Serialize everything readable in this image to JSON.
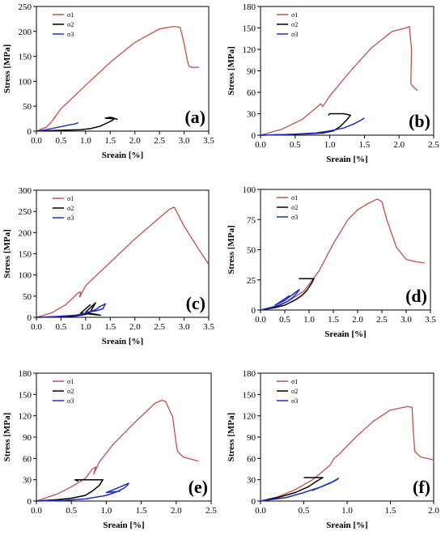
{
  "colors": {
    "s1": "#c0504d",
    "s2": "#000000",
    "s3": "#1f2ccc"
  },
  "chart_data": [
    {
      "type": "line",
      "panel_label": "(a)",
      "xlabel": "Sreain [%]",
      "ylabel": "Stress [MPa]",
      "xlim": [
        0,
        3.5
      ],
      "ylim": [
        0,
        250
      ],
      "xticks": [
        "0.0",
        "0.5",
        "1.0",
        "1.5",
        "2.0",
        "2.5",
        "3.0",
        "3.5"
      ],
      "yticks": [
        "0",
        "50",
        "100",
        "150",
        "200",
        "250"
      ],
      "legend": {
        "position": "top-left",
        "entries": [
          "σ1",
          "σ2",
          "σ3"
        ]
      },
      "series": [
        {
          "name": "σ1",
          "color": "#c0504d",
          "x": [
            0,
            0.2,
            0.3,
            0.38,
            0.35,
            0.5,
            1.0,
            1.5,
            2.0,
            2.5,
            2.8,
            2.92,
            3.0,
            3.07,
            3.1,
            3.15,
            3.3
          ],
          "y": [
            0,
            8,
            18,
            28,
            25,
            45,
            92,
            138,
            178,
            205,
            210,
            208,
            175,
            140,
            130,
            128,
            128
          ]
        },
        {
          "name": "σ2",
          "color": "#000000",
          "x": [
            0,
            0.3,
            0.6,
            0.9,
            1.1,
            1.3,
            1.45,
            1.55,
            1.58,
            1.5,
            1.4,
            1.55,
            1.65
          ],
          "y": [
            0,
            1,
            2,
            3,
            5,
            10,
            17,
            22,
            26,
            28,
            26,
            25,
            24
          ]
        },
        {
          "name": "σ3",
          "color": "#1f2ccc",
          "x": [
            0,
            0.2,
            0.4,
            0.6,
            0.8,
            0.85
          ],
          "y": [
            0,
            3,
            7,
            11,
            15,
            17
          ]
        }
      ]
    },
    {
      "type": "line",
      "panel_label": "(b)",
      "xlabel": "Sreain [%]",
      "ylabel": "Stress [MPa]",
      "xlim": [
        0,
        2.5
      ],
      "ylim": [
        0,
        180
      ],
      "xticks": [
        "0.0",
        "0.5",
        "1.0",
        "1.5",
        "2.0",
        "2.5"
      ],
      "yticks": [
        "0",
        "30",
        "60",
        "90",
        "120",
        "150",
        "180"
      ],
      "legend": {
        "position": "top-left",
        "entries": [
          "σ1",
          "σ2",
          "σ3"
        ]
      },
      "series": [
        {
          "name": "σ1",
          "color": "#c0504d",
          "x": [
            0,
            0.3,
            0.6,
            0.8,
            0.87,
            0.9,
            1.0,
            1.3,
            1.6,
            1.9,
            2.1,
            2.15,
            2.18,
            2.17,
            2.2,
            2.27
          ],
          "y": [
            0,
            8,
            22,
            38,
            44,
            40,
            55,
            90,
            122,
            145,
            150,
            152,
            120,
            72,
            68,
            62
          ]
        },
        {
          "name": "σ2",
          "color": "#000000",
          "x": [
            0,
            0.4,
            0.7,
            0.9,
            1.05,
            1.15,
            1.25,
            1.3,
            1.2,
            1.0,
            0.98
          ],
          "y": [
            0,
            1,
            2,
            3,
            6,
            12,
            22,
            28,
            30,
            30,
            28
          ]
        },
        {
          "name": "σ3",
          "color": "#1f2ccc",
          "x": [
            0,
            0.4,
            0.8,
            1.0,
            1.2,
            1.35,
            1.45,
            1.5
          ],
          "y": [
            0,
            1,
            3,
            6,
            10,
            16,
            21,
            24
          ]
        }
      ]
    },
    {
      "type": "line",
      "panel_label": "(c)",
      "xlabel": "Sreain [%]",
      "ylabel": "Stress [MPa]",
      "xlim": [
        0,
        3.5
      ],
      "ylim": [
        0,
        300
      ],
      "xticks": [
        "0.0",
        "0.5",
        "1.0",
        "1.5",
        "2.0",
        "2.5",
        "3.0",
        "3.5"
      ],
      "yticks": [
        "0",
        "50",
        "100",
        "150",
        "200",
        "250",
        "300"
      ],
      "legend": {
        "position": "top-left",
        "entries": [
          "σ1",
          "σ2",
          "σ3"
        ]
      },
      "series": [
        {
          "name": "σ1",
          "color": "#c0504d",
          "x": [
            0,
            0.3,
            0.6,
            0.85,
            0.9,
            0.88,
            1.0,
            1.5,
            2.0,
            2.5,
            2.7,
            2.8,
            3.0,
            3.3,
            3.5
          ],
          "y": [
            0,
            10,
            30,
            58,
            60,
            48,
            75,
            130,
            185,
            235,
            255,
            260,
            215,
            160,
            125
          ]
        },
        {
          "name": "σ2",
          "color": "#000000",
          "x": [
            0,
            0.5,
            0.8,
            1.0,
            1.1,
            1.2,
            1.0,
            1.15,
            1.3,
            0.9,
            1.1
          ],
          "y": [
            0,
            1,
            3,
            7,
            14,
            34,
            12,
            8,
            5,
            10,
            30
          ]
        },
        {
          "name": "σ3",
          "color": "#1f2ccc",
          "x": [
            0,
            0.4,
            0.8,
            1.0,
            1.2,
            1.3,
            1.4,
            1.35,
            1.2,
            1.0
          ],
          "y": [
            0,
            2,
            5,
            10,
            18,
            26,
            32,
            20,
            15,
            12
          ]
        }
      ]
    },
    {
      "type": "line",
      "panel_label": "(d)",
      "xlabel": "Sreain [%]",
      "ylabel": "Stress [MPa]",
      "xlim": [
        0,
        3.5
      ],
      "ylim": [
        0,
        100
      ],
      "xticks": [
        "0.0",
        "0.5",
        "1.0",
        "1.5",
        "2.0",
        "2.5",
        "3.0",
        "3.5"
      ],
      "yticks": [
        "0",
        "25",
        "50",
        "75",
        "100"
      ],
      "legend": {
        "position": "top-left",
        "entries": [
          "σ1",
          "σ2",
          "σ3"
        ]
      },
      "series": [
        {
          "name": "σ1",
          "color": "#c0504d",
          "x": [
            0,
            0.3,
            0.6,
            0.9,
            1.2,
            1.5,
            1.8,
            2.0,
            2.2,
            2.4,
            2.5,
            2.6,
            2.8,
            3.0,
            3.2,
            3.38
          ],
          "y": [
            0,
            3,
            8,
            16,
            32,
            55,
            75,
            83,
            88,
            92,
            90,
            75,
            52,
            42,
            40,
            39
          ]
        },
        {
          "name": "σ2",
          "color": "#000000",
          "x": [
            0,
            0.3,
            0.5,
            0.7,
            0.85,
            0.95,
            1.05,
            1.1,
            0.95,
            0.8,
            1.1
          ],
          "y": [
            0,
            2,
            4,
            8,
            12,
            16,
            22,
            26,
            26,
            26,
            26
          ]
        },
        {
          "name": "σ3",
          "color": "#1f2ccc",
          "x": [
            0,
            0.2,
            0.4,
            0.55,
            0.65,
            0.75,
            0.8,
            0.7,
            0.5,
            0.3,
            0.6
          ],
          "y": [
            0,
            2,
            4,
            7,
            10,
            14,
            17,
            14,
            8,
            4,
            12
          ]
        }
      ]
    },
    {
      "type": "line",
      "panel_label": "(e)",
      "xlabel": "Sreain [%]",
      "ylabel": "Stress [MPa]",
      "xlim": [
        0,
        2.5
      ],
      "ylim": [
        0,
        180
      ],
      "xticks": [
        "0.0",
        "0.5",
        "1.0",
        "1.5",
        "2.0",
        "2.5"
      ],
      "yticks": [
        "0",
        "30",
        "60",
        "90",
        "120",
        "150",
        "180"
      ],
      "legend": {
        "position": "top-left",
        "entries": [
          "σ1",
          "σ2",
          "σ3"
        ]
      },
      "series": [
        {
          "name": "σ1",
          "color": "#c0504d",
          "x": [
            0,
            0.3,
            0.5,
            0.7,
            0.8,
            0.85,
            0.82,
            0.9,
            1.1,
            1.4,
            1.7,
            1.8,
            1.85,
            1.95,
            2.0,
            2.02,
            2.1,
            2.32
          ],
          "y": [
            0,
            10,
            20,
            32,
            45,
            48,
            38,
            55,
            80,
            110,
            138,
            142,
            140,
            118,
            80,
            70,
            62,
            56
          ]
        },
        {
          "name": "σ2",
          "color": "#000000",
          "x": [
            0,
            0.3,
            0.5,
            0.7,
            0.8,
            0.9,
            0.95,
            0.75,
            0.55,
            0.6
          ],
          "y": [
            0,
            2,
            4,
            8,
            14,
            22,
            30,
            30,
            30,
            28
          ]
        },
        {
          "name": "σ3",
          "color": "#1f2ccc",
          "x": [
            0,
            0.4,
            0.7,
            1.0,
            1.15,
            1.25,
            1.3,
            1.32,
            1.2,
            1.0,
            1.2
          ],
          "y": [
            0,
            1,
            3,
            8,
            13,
            18,
            22,
            25,
            20,
            12,
            14
          ]
        }
      ]
    },
    {
      "type": "line",
      "panel_label": "(f)",
      "xlabel": "Sreain [%]",
      "ylabel": "Stress [MPa]",
      "xlim": [
        0,
        2.0
      ],
      "ylim": [
        0,
        180
      ],
      "xticks": [
        "0.0",
        "0.5",
        "1.0",
        "1.5",
        "2.0"
      ],
      "yticks": [
        "0",
        "30",
        "60",
        "90",
        "120",
        "150",
        "180"
      ],
      "legend": {
        "position": "top-left",
        "entries": [
          "σ1",
          "σ2",
          "σ3"
        ]
      },
      "series": [
        {
          "name": "σ1",
          "color": "#c0504d",
          "x": [
            0,
            0.2,
            0.4,
            0.6,
            0.8,
            0.85,
            0.9,
            1.1,
            1.3,
            1.5,
            1.7,
            1.75,
            1.76,
            1.78,
            1.85,
            2.0
          ],
          "y": [
            0,
            6,
            16,
            30,
            50,
            60,
            65,
            90,
            112,
            128,
            133,
            132,
            110,
            70,
            62,
            58
          ]
        },
        {
          "name": "σ2",
          "color": "#000000",
          "x": [
            0,
            0.2,
            0.4,
            0.55,
            0.65,
            0.72,
            0.6,
            0.5
          ],
          "y": [
            0,
            5,
            12,
            20,
            28,
            33,
            33,
            33
          ]
        },
        {
          "name": "σ3",
          "color": "#1f2ccc",
          "x": [
            0,
            0.3,
            0.5,
            0.7,
            0.8,
            0.88,
            0.9,
            0.8,
            0.6,
            0.85
          ],
          "y": [
            0,
            5,
            12,
            20,
            25,
            30,
            32,
            25,
            15,
            28
          ]
        }
      ]
    }
  ]
}
